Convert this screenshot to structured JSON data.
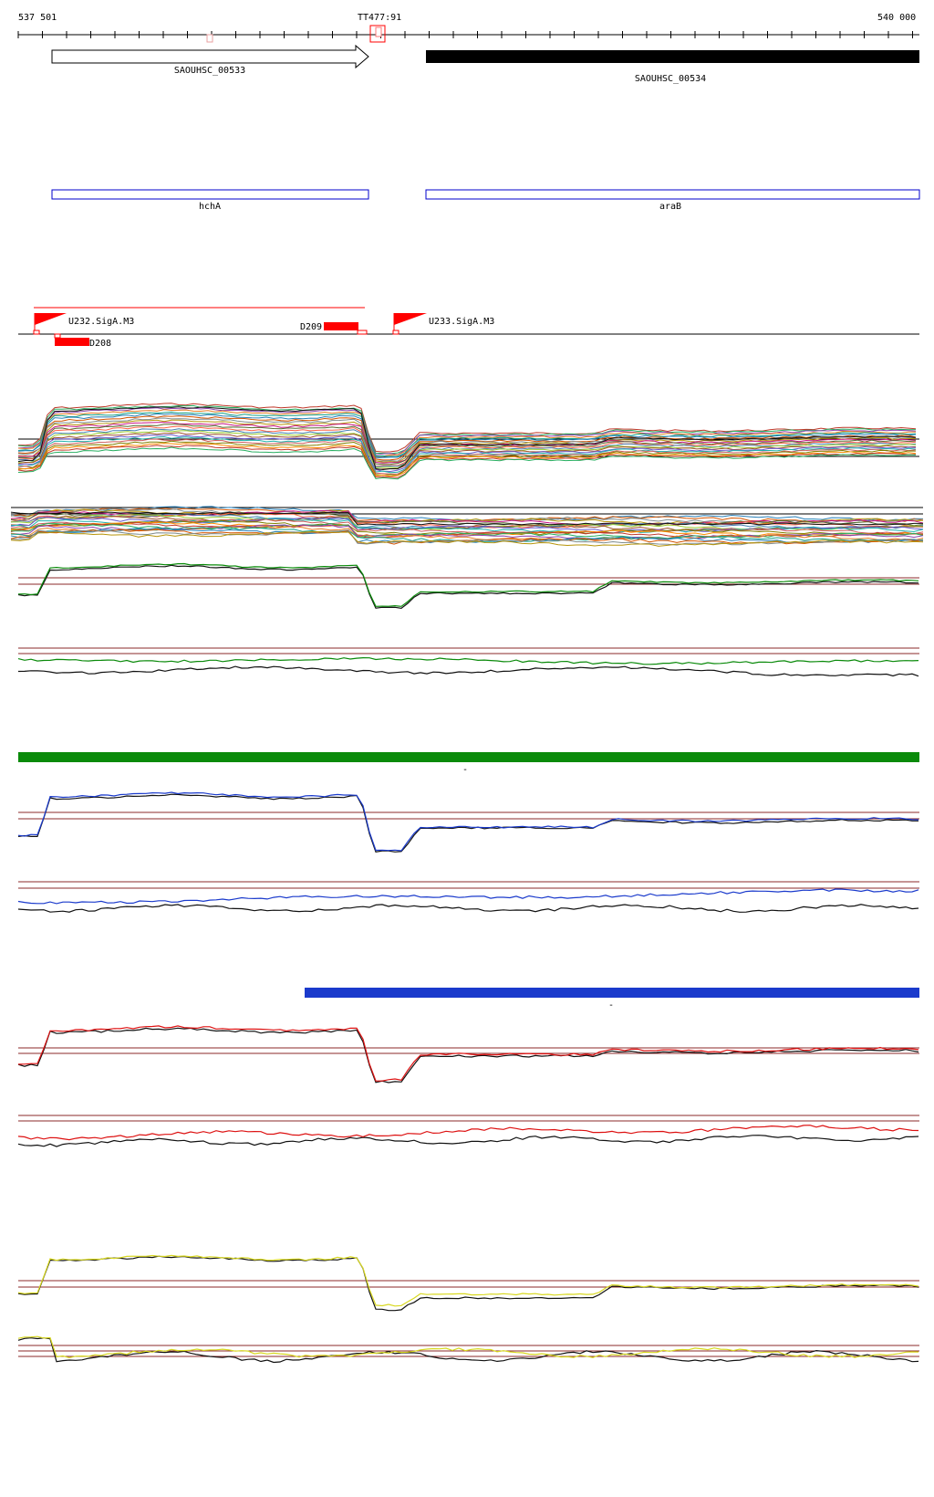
{
  "ruler": {
    "start_label": "537 501",
    "end_label": "540 000",
    "marker_label": "TT477:91"
  },
  "genes": [
    {
      "name": "SAOUHSC_00533",
      "style": "outline-arrow"
    },
    {
      "name": "SAOUHSC_00534",
      "style": "filled"
    }
  ],
  "annotations": [
    {
      "name": "hchA"
    },
    {
      "name": "araB"
    }
  ],
  "regulatory": [
    {
      "name": "U232.SigA.M3",
      "kind": "promoter"
    },
    {
      "name": "D208",
      "kind": "element"
    },
    {
      "name": "D209",
      "kind": "element"
    },
    {
      "name": "U233.SigA.M3",
      "kind": "promoter"
    }
  ],
  "segment_labels": {
    "green_bar": "-",
    "blue_bar": "-"
  },
  "colors": {
    "gene_outline": "#000000",
    "gene_filled": "#000000",
    "annotation_box": "#0000cc",
    "regulatory": "#ff0000",
    "threshold_line": "#8b2a2a",
    "green_series": "#0a8a0a",
    "blue_series": "#1a3acc",
    "red_series": "#dd1111",
    "yellow_series": "#d8d820",
    "black_series": "#111111"
  }
}
